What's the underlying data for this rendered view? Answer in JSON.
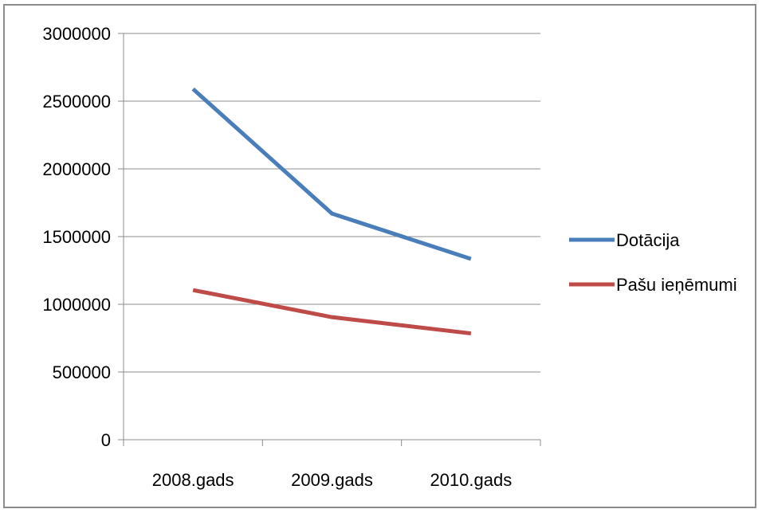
{
  "chart_data": {
    "type": "line",
    "categories": [
      "2008.gads",
      "2009.gads",
      "2010.gads"
    ],
    "series": [
      {
        "name": "Dotācija",
        "values": [
          2590000,
          1670000,
          1335000
        ],
        "color": "#4a7ebb"
      },
      {
        "name": "Pašu ieņēmumi",
        "values": [
          1105000,
          905000,
          785000
        ],
        "color": "#be4b48"
      }
    ],
    "ylim": [
      0,
      3000000
    ],
    "yticks": [
      0,
      500000,
      1000000,
      1500000,
      2000000,
      2500000,
      3000000
    ],
    "grid": true,
    "legend": "right"
  }
}
